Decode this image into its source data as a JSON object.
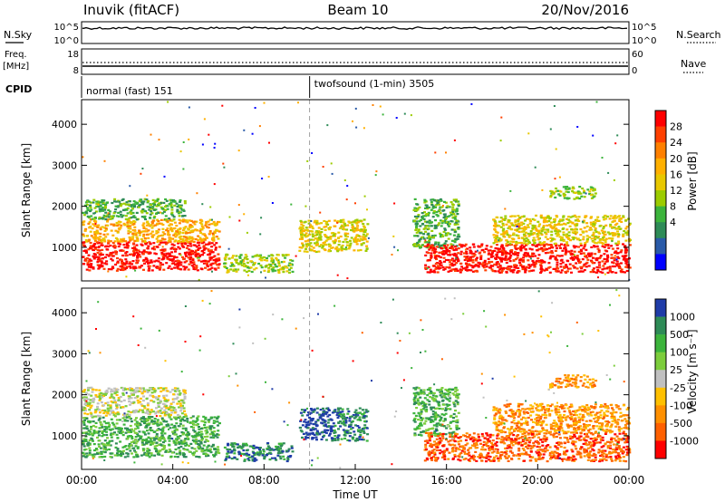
{
  "header": {
    "station": "Inuvik (fitACF)",
    "beam": "Beam 10",
    "date": "20/Nov/2016"
  },
  "top_panels": {
    "nsky_label": "N.Sky",
    "nsearch_label": "N.Search",
    "nsky_ticks": [
      "10^5",
      "10^0"
    ],
    "nsearch_ticks": [
      "10^5",
      "10^0"
    ],
    "freq_label_1": "Freq.",
    "freq_label_2": "[MHz]",
    "freq_ticks": [
      "18",
      "8"
    ],
    "nave_label": "Nave",
    "nave_ticks": [
      "60",
      "0"
    ],
    "cpid_label": "CPID",
    "cpid_segments": [
      {
        "label": "normal (fast) 151",
        "start_hour": 0,
        "end_hour": 10
      },
      {
        "label": "twofsound (1-min) 3505",
        "start_hour": 10,
        "end_hour": 24
      }
    ]
  },
  "chart_data": [
    {
      "type": "heatmap",
      "name": "power",
      "ylabel": "Slant Range [km]",
      "xlabel": "",
      "ylim": [
        180,
        4600
      ],
      "xlim": [
        0,
        24
      ],
      "yticks": [
        "4000",
        "3000",
        "2000",
        "1000"
      ],
      "ytick_values": [
        4000,
        3000,
        2000,
        1000
      ],
      "colorbar": {
        "label": "Power [dB]",
        "ticks": [
          "28",
          "24",
          "20",
          "16",
          "12",
          "8",
          "4"
        ],
        "colors": [
          "#ff0000",
          "#ff4000",
          "#ff8000",
          "#ffb000",
          "#e8c800",
          "#9ccc00",
          "#3cb43c",
          "#2e8b57",
          "#2a5aa8",
          "#0000ff"
        ]
      },
      "regions": [
        {
          "t0": 0.0,
          "t1": 6.0,
          "r0": 450,
          "r1": 1150,
          "level": 0
        },
        {
          "t0": 0.0,
          "t1": 6.0,
          "r0": 1150,
          "r1": 1700,
          "level": 3
        },
        {
          "t0": 0.0,
          "t1": 4.5,
          "r0": 1700,
          "r1": 2200,
          "level": 6
        },
        {
          "t0": 6.2,
          "t1": 9.2,
          "r0": 400,
          "r1": 850,
          "level": 5
        },
        {
          "t0": 9.5,
          "t1": 12.5,
          "r0": 900,
          "r1": 1700,
          "level": 4
        },
        {
          "t0": 14.5,
          "t1": 16.5,
          "r0": 1000,
          "r1": 2200,
          "level": 6
        },
        {
          "t0": 15.0,
          "t1": 24.0,
          "r0": 400,
          "r1": 1100,
          "level": 0
        },
        {
          "t0": 18.0,
          "t1": 24.0,
          "r0": 1100,
          "r1": 1800,
          "level": 4
        },
        {
          "t0": 20.5,
          "t1": 22.5,
          "r0": 2200,
          "r1": 2500,
          "level": 5
        }
      ]
    },
    {
      "type": "heatmap",
      "name": "velocity",
      "ylabel": "Slant Range [km]",
      "xlabel": "Time UT",
      "ylim": [
        180,
        4600
      ],
      "xlim": [
        0,
        24
      ],
      "yticks": [
        "4000",
        "3000",
        "2000",
        "1000"
      ],
      "ytick_values": [
        4000,
        3000,
        2000,
        1000
      ],
      "xticks": [
        "00:00",
        "04:00",
        "08:00",
        "12:00",
        "16:00",
        "20:00",
        "00:00"
      ],
      "xtick_values": [
        0,
        4,
        8,
        12,
        16,
        20,
        24
      ],
      "colorbar": {
        "label": "Velocity [m s⁻¹]",
        "ticks": [
          "1000",
          "500",
          "100",
          "25",
          "-25",
          "-100",
          "-500",
          "-1000"
        ],
        "colors": [
          "#1f3ca8",
          "#2e8b57",
          "#3cb43c",
          "#7ccd3c",
          "#c0c0c0",
          "#ffc000",
          "#ff9000",
          "#ff6000",
          "#ff0000"
        ]
      },
      "regions": [
        {
          "t0": 0.0,
          "t1": 6.0,
          "r0": 500,
          "r1": 1500,
          "level": 2
        },
        {
          "t0": 0.0,
          "t1": 4.5,
          "r0": 1500,
          "r1": 2200,
          "level": 4
        },
        {
          "t0": 6.2,
          "t1": 9.2,
          "r0": 400,
          "r1": 850,
          "level": 1
        },
        {
          "t0": 9.5,
          "t1": 11.0,
          "r0": 900,
          "r1": 1700,
          "level": 0
        },
        {
          "t0": 11.0,
          "t1": 12.5,
          "r0": 900,
          "r1": 1700,
          "level": 1
        },
        {
          "t0": 14.5,
          "t1": 16.5,
          "r0": 1000,
          "r1": 2200,
          "level": 2
        },
        {
          "t0": 15.0,
          "t1": 24.0,
          "r0": 400,
          "r1": 1100,
          "level": 7
        },
        {
          "t0": 18.0,
          "t1": 24.0,
          "r0": 1100,
          "r1": 1800,
          "level": 6
        },
        {
          "t0": 20.5,
          "t1": 22.5,
          "r0": 2200,
          "r1": 2500,
          "level": 6
        }
      ]
    }
  ],
  "colors": {
    "axis": "#000000",
    "cpid_divider": "#888888"
  }
}
